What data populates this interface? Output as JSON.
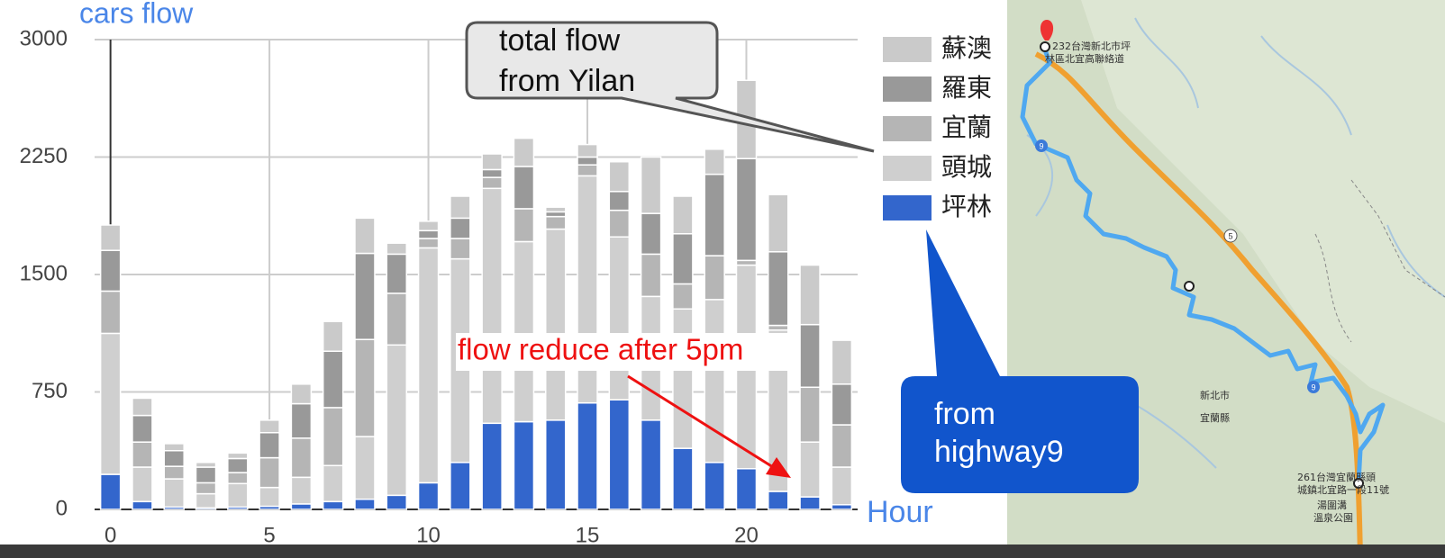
{
  "chart_data": {
    "type": "bar",
    "stacked": true,
    "y_label": "cars flow",
    "x_label": "Hour",
    "x": [
      0,
      1,
      2,
      3,
      4,
      5,
      6,
      7,
      8,
      9,
      10,
      11,
      12,
      13,
      14,
      15,
      16,
      17,
      18,
      19,
      20,
      21,
      22,
      23
    ],
    "xlim": [
      -0.5,
      23.5
    ],
    "xticks": [
      0,
      5,
      10,
      15,
      20
    ],
    "ylim": [
      0,
      3000
    ],
    "yticks": [
      0,
      750,
      1500,
      2250,
      3000
    ],
    "grid": true,
    "legend": "right",
    "series": [
      {
        "name": "坪林",
        "color": "#3366cc",
        "values": [
          224,
          50,
          15,
          10,
          15,
          20,
          35,
          50,
          65,
          90,
          170,
          300,
          550,
          560,
          570,
          680,
          700,
          570,
          390,
          300,
          260,
          115,
          80,
          30
        ]
      },
      {
        "name": "頭城",
        "color": "#cfcfcf",
        "values": [
          900,
          220,
          180,
          90,
          150,
          120,
          170,
          230,
          400,
          960,
          1500,
          1300,
          1500,
          1150,
          1220,
          1450,
          1040,
          790,
          890,
          1040,
          1300,
          1030,
          350,
          240
        ]
      },
      {
        "name": "宜蘭",
        "color": "#b5b5b5",
        "values": [
          270,
          160,
          80,
          70,
          70,
          190,
          250,
          370,
          620,
          330,
          60,
          130,
          70,
          210,
          80,
          70,
          170,
          270,
          160,
          280,
          30,
          30,
          350,
          270
        ]
      },
      {
        "name": "羅東",
        "color": "#999999",
        "values": [
          260,
          170,
          100,
          100,
          90,
          160,
          220,
          360,
          550,
          250,
          50,
          130,
          50,
          270,
          30,
          50,
          120,
          260,
          320,
          520,
          650,
          470,
          400,
          260
        ]
      },
      {
        "name": "蘇澳",
        "color": "#cacaca",
        "values": [
          162,
          110,
          45,
          30,
          35,
          80,
          125,
          190,
          225,
          70,
          60,
          140,
          100,
          180,
          30,
          80,
          190,
          360,
          240,
          160,
          500,
          365,
          380,
          280
        ]
      }
    ],
    "annotations": [
      {
        "lines": [
          "total flow",
          "from Yilan"
        ]
      },
      {
        "lines": [
          "flow reduce after 5pm"
        ]
      },
      {
        "lines": [
          "from",
          "highway9"
        ]
      }
    ]
  },
  "map": {
    "origin": [
      "232台灣新北市坪",
      "林區北宜高聯絡道"
    ],
    "destination": [
      "261台灣宜蘭縣頭",
      "城鎮北宜路一段11號"
    ],
    "regions": [
      "新北市",
      "宜蘭縣"
    ],
    "poi": [
      "湯圍溝",
      "溫泉公園"
    ],
    "shields": [
      "9",
      "5",
      "9"
    ]
  }
}
